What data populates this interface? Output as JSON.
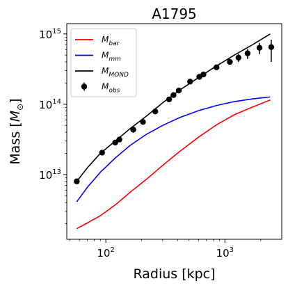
{
  "chart_data": {
    "type": "line",
    "title": "A1795",
    "xlabel": "Radius [kpc]",
    "ylabel_main": "Mass [",
    "ylabel_sym": "M",
    "ylabel_sub": "⊙",
    "ylabel_end": "]",
    "xscale": "log",
    "yscale": "log",
    "xlim": [
      47,
      3000
    ],
    "ylim": [
      1200000000000.0,
      1400000000000000.0
    ],
    "grid": false,
    "legend_position": "top-left",
    "x_ticks": [
      {
        "value": 100,
        "base": "10",
        "exp": "2"
      },
      {
        "value": 1000,
        "base": "10",
        "exp": "3"
      }
    ],
    "y_ticks": [
      {
        "value": 10000000000000.0,
        "base": "10",
        "exp": "13"
      },
      {
        "value": 100000000000000.0,
        "base": "10",
        "exp": "14"
      },
      {
        "value": 1000000000000000.0,
        "base": "10",
        "exp": "15"
      }
    ],
    "series": [
      {
        "name": "M_bar",
        "label_main": "M",
        "label_sub": "bar",
        "color": "#ff0000",
        "style": "line",
        "x": [
          57,
          70,
          90,
          120,
          160,
          220,
          300,
          420,
          600,
          850,
          1200,
          1700,
          2400
        ],
        "y": [
          1700000000000.0,
          2050000000000.0,
          2600000000000.0,
          3700000000000.0,
          5600000000000.0,
          8600000000000.0,
          13500000000000.0,
          21500000000000.0,
          34000000000000.0,
          51000000000000.0,
          71000000000000.0,
          91000000000000.0,
          115000000000000.0
        ]
      },
      {
        "name": "M_mm",
        "label_main": "M",
        "label_sub": "mm",
        "color": "#0000ff",
        "style": "line",
        "x": [
          57,
          70,
          90,
          120,
          160,
          220,
          300,
          420,
          600,
          850,
          1200,
          1700,
          2400
        ],
        "y": [
          4100000000000.0,
          6600000000000.0,
          10800000000000.0,
          17200000000000.0,
          26000000000000.0,
          37500000000000.0,
          50000000000000.0,
          65000000000000.0,
          81000000000000.0,
          96000000000000.0,
          109000000000000.0,
          119000000000000.0,
          127000000000000.0
        ]
      },
      {
        "name": "M_MOND",
        "label_main": "M",
        "label_sub": "MOND",
        "color": "#000000",
        "style": "line",
        "x": [
          57,
          70,
          90,
          120,
          160,
          220,
          300,
          420,
          600,
          850,
          1200,
          1700,
          2400
        ],
        "y": [
          8000000000000.0,
          12500000000000.0,
          20000000000000.0,
          30000000000000.0,
          45000000000000.0,
          68000000000000.0,
          105000000000000.0,
          160000000000000.0,
          240000000000000.0,
          350000000000000.0,
          500000000000000.0,
          700000000000000.0,
          1000000000000000.0
        ]
      },
      {
        "name": "M_obs",
        "label_main": "M",
        "label_sub": "obs",
        "color": "#000000",
        "style": "errorbar",
        "x": [
          57,
          93,
          120,
          130,
          170,
          205,
          260,
          340,
          370,
          410,
          510,
          610,
          660,
          850,
          1100,
          1300,
          1550,
          1950,
          2450
        ],
        "y": [
          8000000000000.0,
          20500000000000.0,
          28500000000000.0,
          31500000000000.0,
          43500000000000.0,
          56000000000000.0,
          79000000000000.0,
          117000000000000.0,
          135000000000000.0,
          157000000000000.0,
          210000000000000.0,
          245000000000000.0,
          265000000000000.0,
          335000000000000.0,
          400000000000000.0,
          460000000000000.0,
          530000000000000.0,
          635000000000000.0,
          650000000000000.0
        ],
        "yerr_low": [
          0,
          0,
          0,
          0,
          0,
          0,
          0,
          0,
          0,
          0,
          0,
          0,
          0,
          0,
          0,
          60000000000000.0,
          90000000000000.0,
          120000000000000.0,
          250000000000000.0
        ],
        "yerr_high": [
          0,
          0,
          0,
          0,
          0,
          0,
          0,
          0,
          0,
          0,
          0,
          0,
          0,
          0,
          0,
          60000000000000.0,
          80000000000000.0,
          110000000000000.0,
          180000000000000.0
        ]
      }
    ]
  }
}
